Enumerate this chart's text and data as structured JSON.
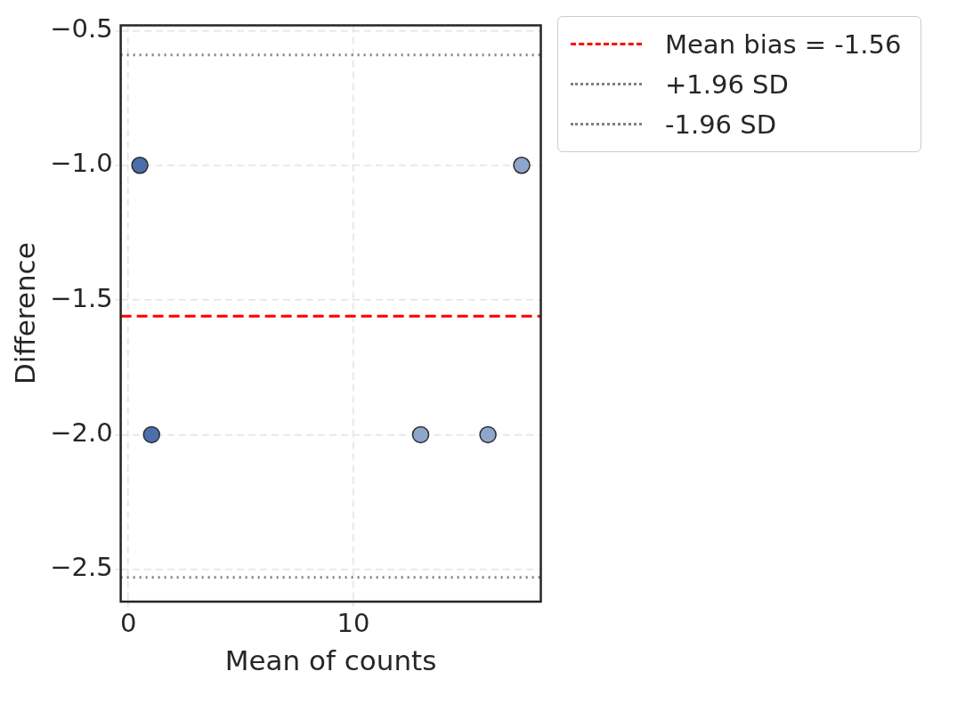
{
  "chart_data": {
    "type": "scatter",
    "xlabel": "Mean of counts",
    "ylabel": "Difference",
    "series": [
      {
        "x": [
          0.51,
          1.03,
          12.99,
          15.98,
          17.48
        ],
        "values": [
          -1,
          -2,
          -2,
          -2,
          -1
        ],
        "colors": [
          "#4c6fab",
          "#4c6fab",
          "#8ea5cc",
          "#8ea5cc",
          "#8ea5cc"
        ]
      }
    ],
    "xlim": [
      -0.34,
      18.33
    ],
    "ylim": [
      -2.62,
      -0.48
    ],
    "xticks": [
      0,
      10
    ],
    "yticks": [
      {
        "value": -2.5,
        "label": "−2.5"
      },
      {
        "value": -2.0,
        "label": "−2.0"
      },
      {
        "value": -1.5,
        "label": "−1.5"
      },
      {
        "value": -1.0,
        "label": "−1.0"
      },
      {
        "value": -0.5,
        "label": "−0.5"
      }
    ],
    "ref_lines": [
      {
        "axis": "y",
        "value": -1.56,
        "label": "Mean bias = -1.56",
        "color": "#ff0000",
        "line_style": "dashed"
      },
      {
        "axis": "y",
        "value": -0.59,
        "label": "+1.96 SD",
        "color": "#808080",
        "line_style": "dotted"
      },
      {
        "axis": "y",
        "value": -2.53,
        "label": "-1.96 SD",
        "color": "#808080",
        "line_style": "dotted"
      }
    ],
    "grid": true,
    "legend": "top right",
    "marker": "circle"
  }
}
